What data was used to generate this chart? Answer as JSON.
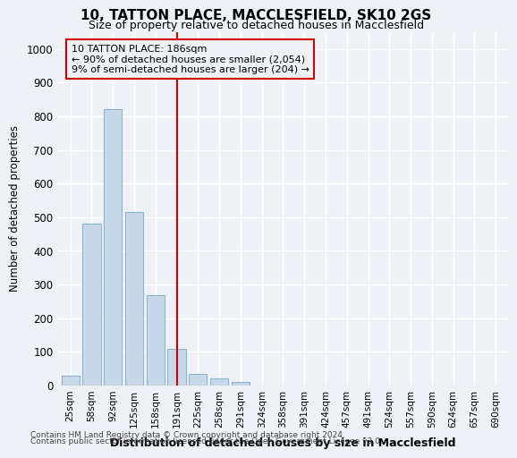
{
  "title1": "10, TATTON PLACE, MACCLESFIELD, SK10 2GS",
  "title2": "Size of property relative to detached houses in Macclesfield",
  "xlabel": "Distribution of detached houses by size in Macclesfield",
  "ylabel": "Number of detached properties",
  "bar_labels": [
    "25sqm",
    "58sqm",
    "92sqm",
    "125sqm",
    "158sqm",
    "191sqm",
    "225sqm",
    "258sqm",
    "291sqm",
    "324sqm",
    "358sqm",
    "391sqm",
    "424sqm",
    "457sqm",
    "491sqm",
    "524sqm",
    "557sqm",
    "590sqm",
    "624sqm",
    "657sqm",
    "690sqm"
  ],
  "bar_values": [
    30,
    480,
    820,
    515,
    268,
    110,
    35,
    22,
    10,
    0,
    0,
    0,
    0,
    0,
    0,
    0,
    0,
    0,
    0,
    0,
    0
  ],
  "bar_color": "#c8d8ea",
  "bar_edgecolor": "#8ab4cc",
  "vline_x": 5,
  "vline_color": "#cc0000",
  "annotation_text": "10 TATTON PLACE: 186sqm\n← 90% of detached houses are smaller (2,054)\n9% of semi-detached houses are larger (204) →",
  "annotation_box_edgecolor": "#cc0000",
  "ylim": [
    0,
    1050
  ],
  "yticks": [
    0,
    100,
    200,
    300,
    400,
    500,
    600,
    700,
    800,
    900,
    1000
  ],
  "footer1": "Contains HM Land Registry data © Crown copyright and database right 2024.",
  "footer2": "Contains public sector information licensed under the Open Government Licence v3.0.",
  "bg_color": "#eef2f7",
  "grid_color": "#ffffff"
}
